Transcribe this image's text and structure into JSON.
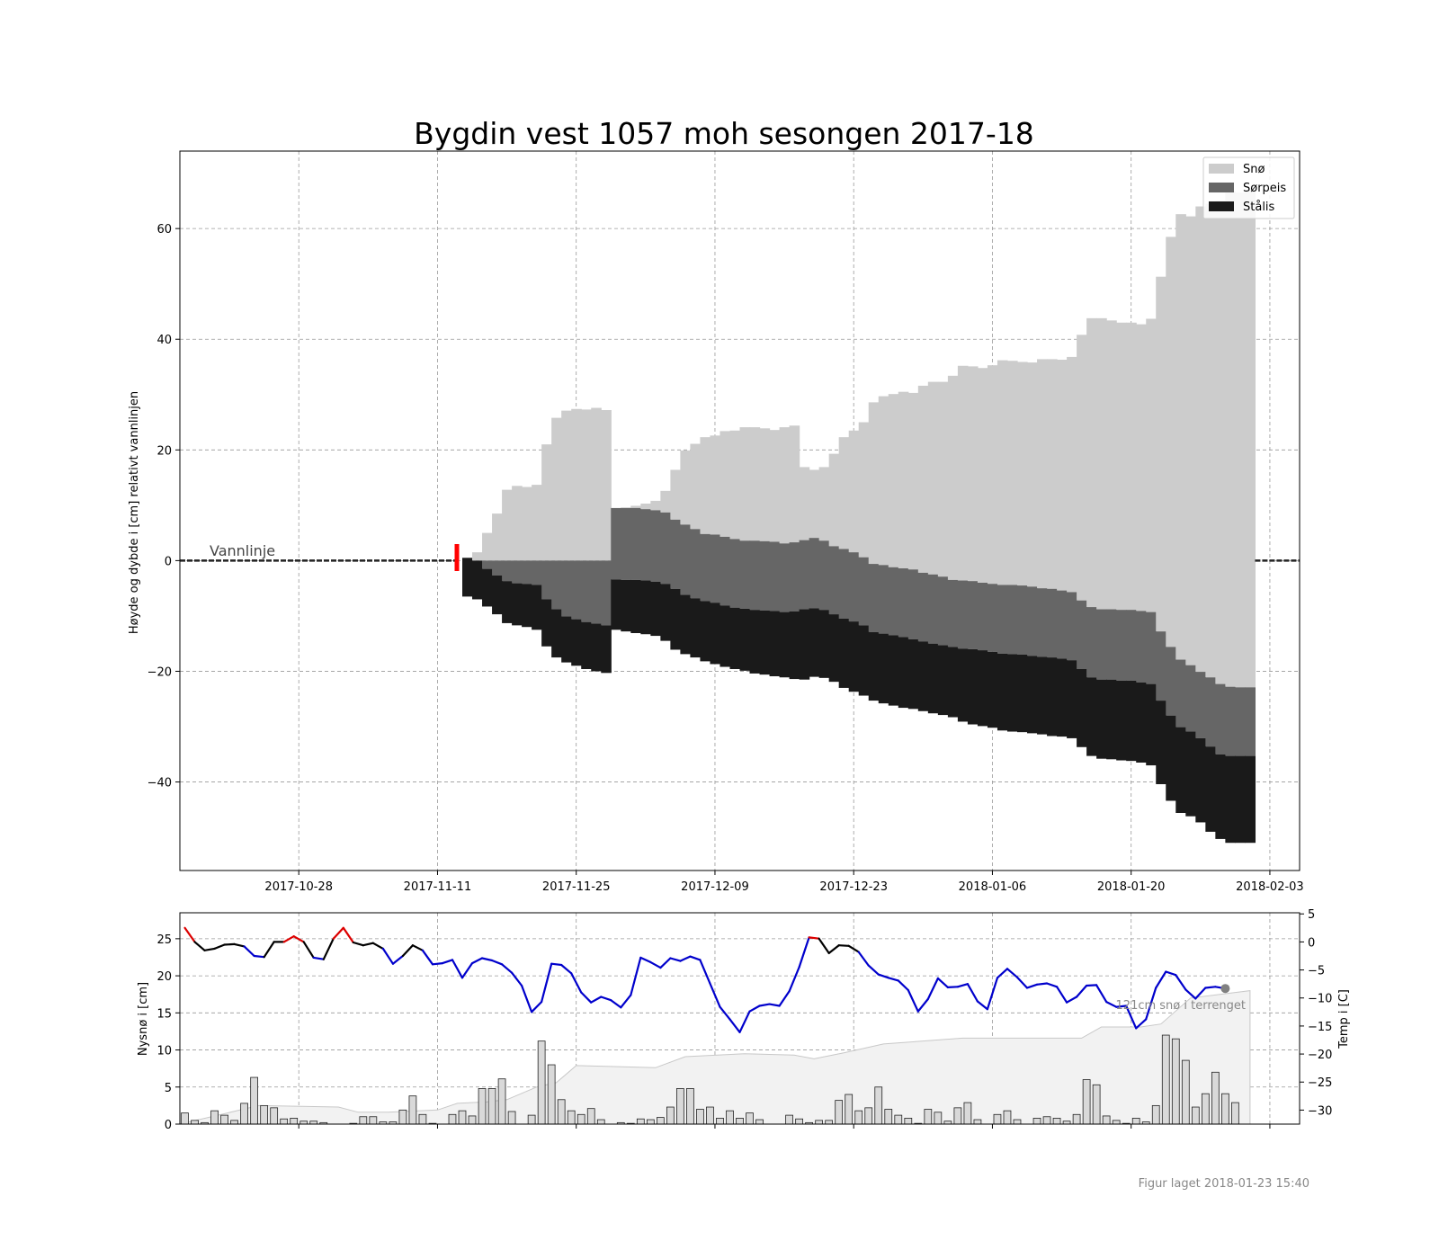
{
  "title": "Bygdin vest 1057 moh sesongen 2017-18",
  "footer": "Figur laget 2018-01-23 15:40",
  "colors": {
    "sno": "#cccccc",
    "sorpeis": "#666666",
    "stalis": "#1a1a1a",
    "temp_cold": "#0000cc",
    "temp_mid": "#000000",
    "temp_warm": "#dd0000",
    "marker": "#ff0000",
    "snow_area": "#f2f2f2"
  },
  "chart_data": [
    {
      "type": "area",
      "ylabel": "Høyde og dybde i [cm] relativt vannlinjen",
      "ylim": [
        -56,
        74
      ],
      "x_range": [
        "2017-10-16",
        "2018-02-06"
      ],
      "x_ticks": [
        "2017-10-28",
        "2017-11-11",
        "2017-11-25",
        "2017-12-09",
        "2017-12-23",
        "2018-01-06",
        "2018-01-20",
        "2018-02-03"
      ],
      "y_ticks": [
        -40,
        -20,
        0,
        20,
        40,
        60
      ],
      "grid": true,
      "legend_placement": "top-right",
      "legend": [
        "Snø",
        "Sørpeis",
        "Stålis"
      ],
      "annotation": "Vannlinje",
      "start_marker": "2017-11-13",
      "dates": [
        "2017-11-14",
        "2017-11-15",
        "2017-11-16",
        "2017-11-17",
        "2017-11-18",
        "2017-11-19",
        "2017-11-20",
        "2017-11-21",
        "2017-11-22",
        "2017-11-23",
        "2017-11-24",
        "2017-11-25",
        "2017-11-26",
        "2017-11-27",
        "2017-11-28",
        "2017-11-29",
        "2017-11-30",
        "2017-12-01",
        "2017-12-02",
        "2017-12-03",
        "2017-12-04",
        "2017-12-05",
        "2017-12-06",
        "2017-12-07",
        "2017-12-08",
        "2017-12-09",
        "2017-12-10",
        "2017-12-11",
        "2017-12-12",
        "2017-12-13",
        "2017-12-14",
        "2017-12-15",
        "2017-12-16",
        "2017-12-17",
        "2017-12-18",
        "2017-12-19",
        "2017-12-20",
        "2017-12-21",
        "2017-12-22",
        "2017-12-23",
        "2017-12-24",
        "2017-12-25",
        "2017-12-26",
        "2017-12-27",
        "2017-12-28",
        "2017-12-29",
        "2017-12-30",
        "2017-12-31",
        "2018-01-01",
        "2018-01-02",
        "2018-01-03",
        "2018-01-04",
        "2018-01-05",
        "2018-01-06",
        "2018-01-07",
        "2018-01-08",
        "2018-01-09",
        "2018-01-10",
        "2018-01-11",
        "2018-01-12",
        "2018-01-13",
        "2018-01-14",
        "2018-01-15",
        "2018-01-16",
        "2018-01-17",
        "2018-01-18",
        "2018-01-19",
        "2018-01-20",
        "2018-01-21",
        "2018-01-22",
        "2018-01-23",
        "2018-01-24",
        "2018-01-25",
        "2018-01-26",
        "2018-01-27",
        "2018-01-28",
        "2018-01-29",
        "2018-01-30",
        "2018-01-31",
        "2018-02-01"
      ],
      "series": [
        {
          "name": "Snø",
          "top": [
            0.5,
            1.5,
            5,
            8.5,
            12.8,
            13.5,
            13.3,
            13.7,
            21,
            25.8,
            27.1,
            27.4,
            27.3,
            27.6,
            27.2,
            9.5,
            9.6,
            9.9,
            10.3,
            10.8,
            12.6,
            16.4,
            19.9,
            21.1,
            22.3,
            22.6,
            23.4,
            23.5,
            24.1,
            24.1,
            23.9,
            23.6,
            24.1,
            24.4,
            16.9,
            16.4,
            16.9,
            19.3,
            22.3,
            23.5,
            25,
            28.6,
            29.7,
            30.1,
            30.5,
            30.3,
            31.6,
            32.3,
            32.3,
            33.4,
            35.2,
            35.1,
            34.8,
            35.3,
            36.2,
            36.1,
            35.9,
            35.8,
            36.4,
            36.4,
            36.3,
            36.8,
            40.8,
            43.8,
            43.8,
            43.4,
            43,
            43,
            42.7,
            43.7,
            51.3,
            58.5,
            62.6,
            62.2,
            64,
            64.5,
            65,
            66.7,
            66.5,
            67
          ]
        },
        {
          "name": "Sørpeis",
          "top": [
            0,
            0,
            0,
            0,
            0,
            0,
            0,
            0,
            0,
            0,
            0,
            0,
            0,
            0,
            0,
            9.5,
            9.5,
            9.5,
            9.3,
            9.1,
            8.7,
            7.4,
            6.5,
            5.7,
            4.8,
            4.7,
            4.3,
            3.9,
            3.6,
            3.6,
            3.5,
            3.4,
            3.1,
            3.3,
            3.7,
            4.1,
            3.6,
            2.6,
            2.1,
            1.5,
            0.6,
            -0.6,
            -0.8,
            -1.2,
            -1.4,
            -1.6,
            -2.2,
            -2.5,
            -2.9,
            -3.5,
            -3.6,
            -3.7,
            -4,
            -4.2,
            -4.4,
            -4.4,
            -4.5,
            -4.7,
            -5,
            -5.1,
            -5.4,
            -5.7,
            -7.2,
            -8.4,
            -8.8,
            -8.8,
            -8.9,
            -8.9,
            -9.1,
            -9.3,
            -12.8,
            -15.6,
            -17.9,
            -18.9,
            -20.1,
            -21.1,
            -22.3,
            -22.8,
            -22.9,
            -22.9
          ]
        },
        {
          "name": "Stålis",
          "top": [
            0.5,
            0,
            -1.5,
            -2.7,
            -3.7,
            -4.1,
            -4.2,
            -4.4,
            -7,
            -8.8,
            -10.1,
            -10.6,
            -11.1,
            -11.4,
            -11.7,
            -3.4,
            -3.5,
            -3.5,
            -3.6,
            -3.8,
            -4.2,
            -5.1,
            -6.2,
            -6.8,
            -7.3,
            -7.6,
            -8.1,
            -8.5,
            -8.7,
            -8.9,
            -9,
            -9.1,
            -9.3,
            -9.2,
            -8.8,
            -8.6,
            -8.9,
            -9.7,
            -10.5,
            -11,
            -11.7,
            -12.9,
            -13.2,
            -13.5,
            -13.8,
            -14.2,
            -14.6,
            -15,
            -15.3,
            -15.6,
            -15.9,
            -16,
            -16.2,
            -16.5,
            -16.8,
            -16.9,
            -17,
            -17.2,
            -17.4,
            -17.5,
            -17.7,
            -18,
            -19.6,
            -21.1,
            -21.5,
            -21.5,
            -21.7,
            -21.7,
            -22,
            -22.3,
            -25.3,
            -28,
            -30.1,
            -30.9,
            -32.1,
            -33.6,
            -35,
            -35.3,
            -35.3,
            -35.3
          ]
        },
        {
          "name": "bottom",
          "top": [
            -6.5,
            -7,
            -8.3,
            -9.7,
            -11.3,
            -11.7,
            -12,
            -12.5,
            -15.5,
            -17.5,
            -18.4,
            -19,
            -19.6,
            -20,
            -20.3,
            -12.5,
            -12.8,
            -13.1,
            -13.3,
            -13.6,
            -14.5,
            -16.1,
            -16.9,
            -17.5,
            -18.2,
            -18.7,
            -19.2,
            -19.6,
            -19.9,
            -20.4,
            -20.6,
            -20.9,
            -21.1,
            -21.4,
            -21.5,
            -21,
            -21.2,
            -21.9,
            -23,
            -23.7,
            -24.4,
            -25.3,
            -25.8,
            -26.2,
            -26.6,
            -26.8,
            -27.2,
            -27.6,
            -27.9,
            -28.3,
            -29.1,
            -29.6,
            -29.9,
            -30.2,
            -30.7,
            -30.9,
            -31,
            -31.2,
            -31.4,
            -31.7,
            -31.8,
            -32.1,
            -33.7,
            -35.3,
            -35.8,
            -35.9,
            -36.1,
            -36.2,
            -36.5,
            -37,
            -40.4,
            -43.4,
            -45.6,
            -46.2,
            -47.3,
            -49,
            -50.3,
            -51,
            -51,
            -51
          ]
        }
      ]
    },
    {
      "type": "bar",
      "ylabel": "Nysnø i [cm]",
      "y2label": "Temp i [C]",
      "ylim": [
        0,
        28.5
      ],
      "y2lim": [
        -32.5,
        5.2
      ],
      "x_range": [
        "2017-10-16",
        "2018-02-06"
      ],
      "y_ticks": [
        0,
        5,
        10,
        15,
        20,
        25
      ],
      "y2_ticks": [
        -30,
        -25,
        -20,
        -15,
        -10,
        -5,
        0,
        5
      ],
      "annotation": "121cm snø i terrenget",
      "x_start": "2017-10-16",
      "new_snow": [
        1.5,
        0.5,
        0.2,
        1.8,
        1.2,
        0.5,
        2.8,
        6.3,
        2.5,
        2.2,
        0.7,
        0.8,
        0.4,
        0.4,
        0.2,
        0,
        0,
        0.1,
        1,
        1,
        0.3,
        0.3,
        1.9,
        3.8,
        1.3,
        0.1,
        0,
        1.3,
        1.8,
        1.1,
        4.8,
        4.8,
        6.1,
        1.7,
        0,
        1.2,
        11.2,
        8,
        3.3,
        1.8,
        1.3,
        2.1,
        0.6,
        0,
        0.2,
        0.1,
        0.7,
        0.6,
        0.9,
        2.3,
        4.8,
        4.8,
        2,
        2.3,
        0.8,
        1.8,
        0.8,
        1.5,
        0.6,
        0,
        0,
        1.2,
        0.7,
        0.2,
        0.5,
        0.5,
        3.2,
        4,
        1.8,
        2.2,
        5,
        2,
        1.2,
        0.8,
        0.1,
        2,
        1.6,
        0.4,
        2.2,
        2.9,
        0.6,
        0,
        1.3,
        1.8,
        0.6,
        0,
        0.8,
        1,
        0.8,
        0.4,
        1.3,
        6,
        5.3,
        1.1,
        0.5,
        0.1,
        0.8,
        0.3,
        2.5,
        12,
        11.5,
        8.6,
        2.3,
        4.1,
        7,
        4.1,
        2.9
      ],
      "temp_start": "2017-10-16",
      "temp": [
        2.5,
        0,
        -1.5,
        -1.2,
        -0.5,
        -0.4,
        -0.8,
        -2.5,
        -2.7,
        0,
        0,
        1,
        0,
        -2.8,
        -3.1,
        0.6,
        2.5,
        -0.1,
        -0.6,
        -0.2,
        -1.2,
        -3.9,
        -2.5,
        -0.6,
        -1.5,
        -4,
        -3.8,
        -3.2,
        -6.4,
        -3.8,
        -2.9,
        -3.3,
        -4,
        -5.5,
        -7.8,
        -12.5,
        -10.7,
        -3.9,
        -4.1,
        -5.6,
        -9,
        -10.8,
        -9.8,
        -10.4,
        -11.7,
        -9.5,
        -2.8,
        -3.6,
        -4.6,
        -2.9,
        -3.4,
        -2.6,
        -3.2,
        -7.4,
        -11.6,
        -13.8,
        -16.1,
        -12.4,
        -11.4,
        -11.1,
        -11.4,
        -8.8,
        -4.5,
        0.8,
        0.6,
        -2,
        -0.6,
        -0.7,
        -1.8,
        -4.2,
        -5.8,
        -6.4,
        -6.9,
        -8.6,
        -12.4,
        -10.2,
        -6.5,
        -8.1,
        -8,
        -7.5,
        -10.6,
        -12,
        -6.4,
        -4.8,
        -6.3,
        -8.2,
        -7.6,
        -7.4,
        -8,
        -10.8,
        -9.8,
        -7.8,
        -7.7,
        -10.7,
        -11.6,
        -11.4,
        -15.4,
        -13.8,
        -8.2,
        -5.3,
        -5.9,
        -8.5,
        -10.1,
        -8.2,
        -8,
        -8.3
      ],
      "snow_depth_dates": [
        "2017-10-16",
        "2017-10-23",
        "2017-10-24",
        "2017-11-01",
        "2017-11-03",
        "2017-11-06",
        "2017-11-11",
        "2017-11-13",
        "2017-11-16",
        "2017-11-18",
        "2017-11-21",
        "2017-11-22",
        "2017-11-23",
        "2017-11-25",
        "2017-12-03",
        "2017-12-06",
        "2017-12-12",
        "2017-12-17",
        "2017-12-19",
        "2017-12-22",
        "2017-12-26",
        "2018-01-03",
        "2018-01-15",
        "2018-01-17",
        "2018-01-21",
        "2018-01-23",
        "2018-01-26",
        "2018-02-01"
      ],
      "snow_depth": [
        0,
        2.2,
        2.5,
        2.3,
        1.6,
        1.6,
        1.9,
        2.8,
        3,
        3.3,
        5,
        5.3,
        5.6,
        7.9,
        7.6,
        9.1,
        9.5,
        9.3,
        8.8,
        9.6,
        10.8,
        11.6,
        11.6,
        13.1,
        13.1,
        13.5,
        17,
        18
      ]
    }
  ]
}
